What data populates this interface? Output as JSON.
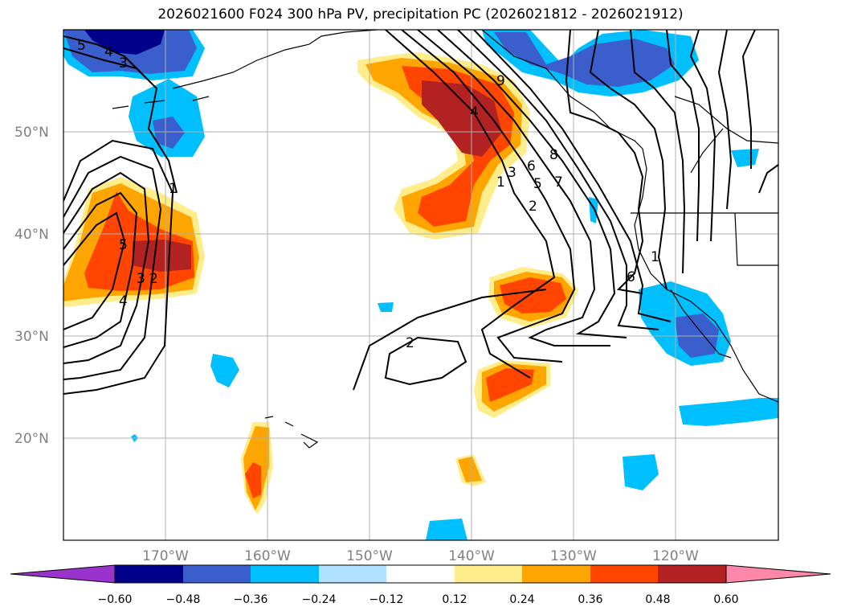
{
  "title": "2026021600 F024 300 hPa PV, precipitation PC (2026021812 - 2026021912)",
  "map": {
    "lon_range": [
      -180,
      -110
    ],
    "lat_range": [
      10,
      60
    ],
    "lat_ticks": [
      {
        "value": 20,
        "label": "20°N"
      },
      {
        "value": 30,
        "label": "30°N"
      },
      {
        "value": 40,
        "label": "40°N"
      },
      {
        "value": 50,
        "label": "50°N"
      }
    ],
    "lon_ticks": [
      {
        "value": -170,
        "label": "170°W"
      },
      {
        "value": -160,
        "label": "160°W"
      },
      {
        "value": -150,
        "label": "150°W"
      },
      {
        "value": -140,
        "label": "140°W"
      },
      {
        "value": -130,
        "label": "130°W"
      },
      {
        "value": -120,
        "label": "120°W"
      }
    ],
    "gridlines": true
  },
  "colorbar": {
    "ticks": [
      "−0.60",
      "−0.48",
      "−0.36",
      "−0.24",
      "−0.12",
      "0.12",
      "0.24",
      "0.36",
      "0.48",
      "0.60"
    ],
    "colors": [
      "#9933cc",
      "#00008b",
      "#3a5fcd",
      "#00bfff",
      "#b0e2ff",
      "#ffffff",
      "#ffec8b",
      "#ffa500",
      "#ff4500",
      "#b22222",
      "#ff88aa"
    ],
    "extend": "both"
  },
  "contour_labels": [
    "5",
    "4",
    "3",
    "1",
    "9",
    "4",
    "8",
    "6",
    "5",
    "7",
    "3",
    "1",
    "2",
    "1",
    "5",
    "3",
    "2",
    "4",
    "2",
    "6"
  ],
  "colors": {
    "dark_red": "#b22222",
    "red_orange": "#ff4500",
    "orange": "#ffa500",
    "light_yellow": "#ffec8b",
    "deep_sky_blue": "#00bfff",
    "royal_blue": "#3a5fcd",
    "navy": "#00008b"
  }
}
